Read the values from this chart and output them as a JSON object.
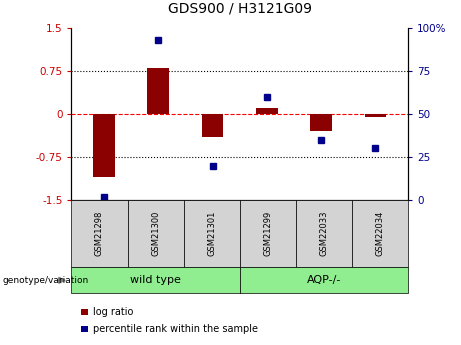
{
  "title": "GDS900 / H3121G09",
  "samples": [
    "GSM21298",
    "GSM21300",
    "GSM21301",
    "GSM21299",
    "GSM22033",
    "GSM22034"
  ],
  "log_ratios": [
    -1.1,
    0.8,
    -0.4,
    0.1,
    -0.3,
    -0.05
  ],
  "percentile_ranks": [
    2,
    93,
    20,
    60,
    35,
    30
  ],
  "bar_color": "#8B0000",
  "point_color": "#00008B",
  "ylim_left": [
    -1.5,
    1.5
  ],
  "ylim_right": [
    0,
    100
  ],
  "yticks_left": [
    -1.5,
    -0.75,
    0,
    0.75,
    1.5
  ],
  "ytick_labels_left": [
    "-1.5",
    "-0.75",
    "0",
    "0.75",
    "1.5"
  ],
  "yticks_right": [
    0,
    25,
    50,
    75,
    100
  ],
  "ytick_labels_right": [
    "0",
    "25",
    "50",
    "75",
    "100%"
  ],
  "hlines": [
    0.75,
    0,
    -0.75
  ],
  "hline_styles": [
    "dotted",
    "dashed",
    "dotted"
  ],
  "hline_colors": [
    "black",
    "red",
    "black"
  ],
  "legend_items": [
    {
      "label": "log ratio",
      "color": "#8B0000"
    },
    {
      "label": "percentile rank within the sample",
      "color": "#00008B"
    }
  ],
  "genotype_label": "genotype/variation",
  "group_labels": [
    "wild type",
    "AQP-/-"
  ],
  "group_colors": [
    "#90EE90",
    "#90EE90"
  ],
  "sample_box_color": "#D3D3D3",
  "bar_width": 0.4,
  "point_size": 5
}
